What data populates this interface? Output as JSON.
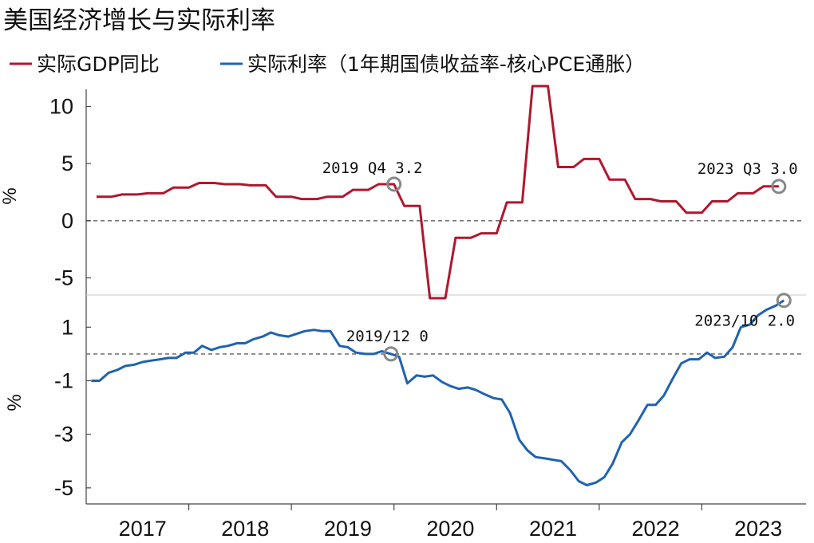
{
  "title": "美国经济增长与实际利率",
  "colors": {
    "gdp": "#b0172f",
    "rate": "#1f63b0",
    "marker": "#888888",
    "zero": "#777777"
  },
  "chart_data": [
    {
      "type": "line",
      "ylabel": "%",
      "ylim": [
        -6.5,
        11.5
      ],
      "yticks": [
        10,
        5,
        0,
        -5
      ],
      "ytick_labels": [
        "10",
        "5",
        "0",
        "-5"
      ],
      "grid": false,
      "zero_line": "dashed",
      "series": [
        {
          "name": "实际GDP同比",
          "color_key": "gdp",
          "x": [
            2017.05,
            2017.2,
            2017.3,
            2017.45,
            2017.55,
            2017.7,
            2017.8,
            2017.95,
            2018.05,
            2018.2,
            2018.3,
            2018.45,
            2018.55,
            2018.7,
            2018.8,
            2018.95,
            2019.05,
            2019.2,
            2019.3,
            2019.45,
            2019.55,
            2019.7,
            2019.8,
            2019.95,
            2020.05,
            2020.2,
            2020.3,
            2020.45,
            2020.55,
            2020.7,
            2020.8,
            2020.95,
            2021.05,
            2021.2,
            2021.3,
            2021.45,
            2021.55,
            2021.7,
            2021.8,
            2021.95,
            2022.05,
            2022.2,
            2022.3,
            2022.45,
            2022.55,
            2022.7,
            2022.8,
            2022.95,
            2023.05,
            2023.2,
            2023.3,
            2023.45,
            2023.55,
            2023.7
          ],
          "values": [
            2.1,
            2.1,
            2.3,
            2.3,
            2.4,
            2.4,
            2.9,
            2.9,
            3.3,
            3.3,
            3.2,
            3.2,
            3.1,
            3.1,
            2.1,
            2.1,
            1.9,
            1.9,
            2.1,
            2.1,
            2.7,
            2.7,
            3.2,
            3.2,
            1.3,
            1.3,
            -8.0,
            -8.0,
            -1.5,
            -1.5,
            -1.1,
            -1.1,
            1.6,
            1.6,
            12.0,
            12.0,
            4.7,
            4.7,
            5.4,
            5.4,
            3.6,
            3.6,
            1.9,
            1.9,
            1.7,
            1.7,
            0.7,
            0.7,
            1.7,
            1.7,
            2.4,
            2.4,
            3.0,
            3.0
          ]
        }
      ],
      "annotations": [
        {
          "x": 2019.95,
          "y": 3.2,
          "label": "2019 Q4 3.2"
        },
        {
          "x": 2023.7,
          "y": 3.0,
          "label": "2023 Q3 3.0"
        }
      ]
    },
    {
      "type": "line",
      "ylabel": "%",
      "ylim": [
        -5.6,
        2.2
      ],
      "yticks": [
        1,
        -1,
        -3,
        -5
      ],
      "ytick_labels": [
        "1",
        "-1",
        "-3",
        "-5"
      ],
      "grid": false,
      "zero_line": "dashed",
      "series": [
        {
          "name": "实际利率（1年期国债收益率-核心PCE通胀）",
          "color_key": "rate",
          "x": [
            2017.0,
            2017.08,
            2017.17,
            2017.25,
            2017.33,
            2017.42,
            2017.5,
            2017.58,
            2017.67,
            2017.75,
            2017.83,
            2017.92,
            2018.0,
            2018.08,
            2018.17,
            2018.25,
            2018.33,
            2018.42,
            2018.5,
            2018.58,
            2018.67,
            2018.75,
            2018.83,
            2018.92,
            2019.0,
            2019.08,
            2019.17,
            2019.25,
            2019.33,
            2019.42,
            2019.5,
            2019.58,
            2019.67,
            2019.75,
            2019.83,
            2019.92,
            2020.0,
            2020.08,
            2020.17,
            2020.25,
            2020.33,
            2020.42,
            2020.5,
            2020.58,
            2020.67,
            2020.75,
            2020.83,
            2020.92,
            2021.0,
            2021.08,
            2021.17,
            2021.25,
            2021.33,
            2021.42,
            2021.5,
            2021.58,
            2021.67,
            2021.75,
            2021.83,
            2021.92,
            2022.0,
            2022.08,
            2022.17,
            2022.25,
            2022.33,
            2022.42,
            2022.5,
            2022.58,
            2022.67,
            2022.75,
            2022.83,
            2022.92,
            2023.0,
            2023.08,
            2023.17,
            2023.25,
            2023.33,
            2023.42,
            2023.5,
            2023.58,
            2023.67,
            2023.75
          ],
          "values": [
            -1.0,
            -1.0,
            -0.7,
            -0.6,
            -0.45,
            -0.4,
            -0.3,
            -0.25,
            -0.2,
            -0.15,
            -0.15,
            0.05,
            0.05,
            0.3,
            0.15,
            0.25,
            0.3,
            0.4,
            0.4,
            0.55,
            0.65,
            0.8,
            0.7,
            0.65,
            0.75,
            0.85,
            0.9,
            0.85,
            0.85,
            0.3,
            0.25,
            0.05,
            0.0,
            0.0,
            0.1,
            0.0,
            -0.1,
            -1.1,
            -0.8,
            -0.85,
            -0.8,
            -1.05,
            -1.2,
            -1.3,
            -1.25,
            -1.35,
            -1.5,
            -1.65,
            -1.7,
            -2.2,
            -3.2,
            -3.6,
            -3.85,
            -3.9,
            -3.95,
            -4.0,
            -4.35,
            -4.75,
            -4.9,
            -4.8,
            -4.6,
            -4.1,
            -3.3,
            -3.0,
            -2.5,
            -1.9,
            -1.9,
            -1.55,
            -0.9,
            -0.35,
            -0.2,
            -0.2,
            0.05,
            -0.15,
            -0.1,
            0.25,
            1.0,
            1.1,
            1.45,
            1.65,
            1.8,
            2.0
          ]
        }
      ],
      "annotations": [
        {
          "x": 2019.92,
          "y": 0.0,
          "label": "2019/12 0"
        },
        {
          "x": 2023.75,
          "y": 2.0,
          "label": "2023/10 2.0"
        }
      ]
    }
  ],
  "xaxis": {
    "xlim": [
      2016.95,
      2023.95
    ],
    "tick_labels": [
      "2017",
      "2018",
      "2019",
      "2020",
      "2021",
      "2022",
      "2023"
    ],
    "label_positions": [
      2017.5,
      2018.5,
      2019.5,
      2020.5,
      2021.5,
      2022.5,
      2023.5
    ],
    "boundaries": [
      2017.95,
      2018.95,
      2019.95,
      2020.95,
      2021.95,
      2022.95
    ]
  }
}
